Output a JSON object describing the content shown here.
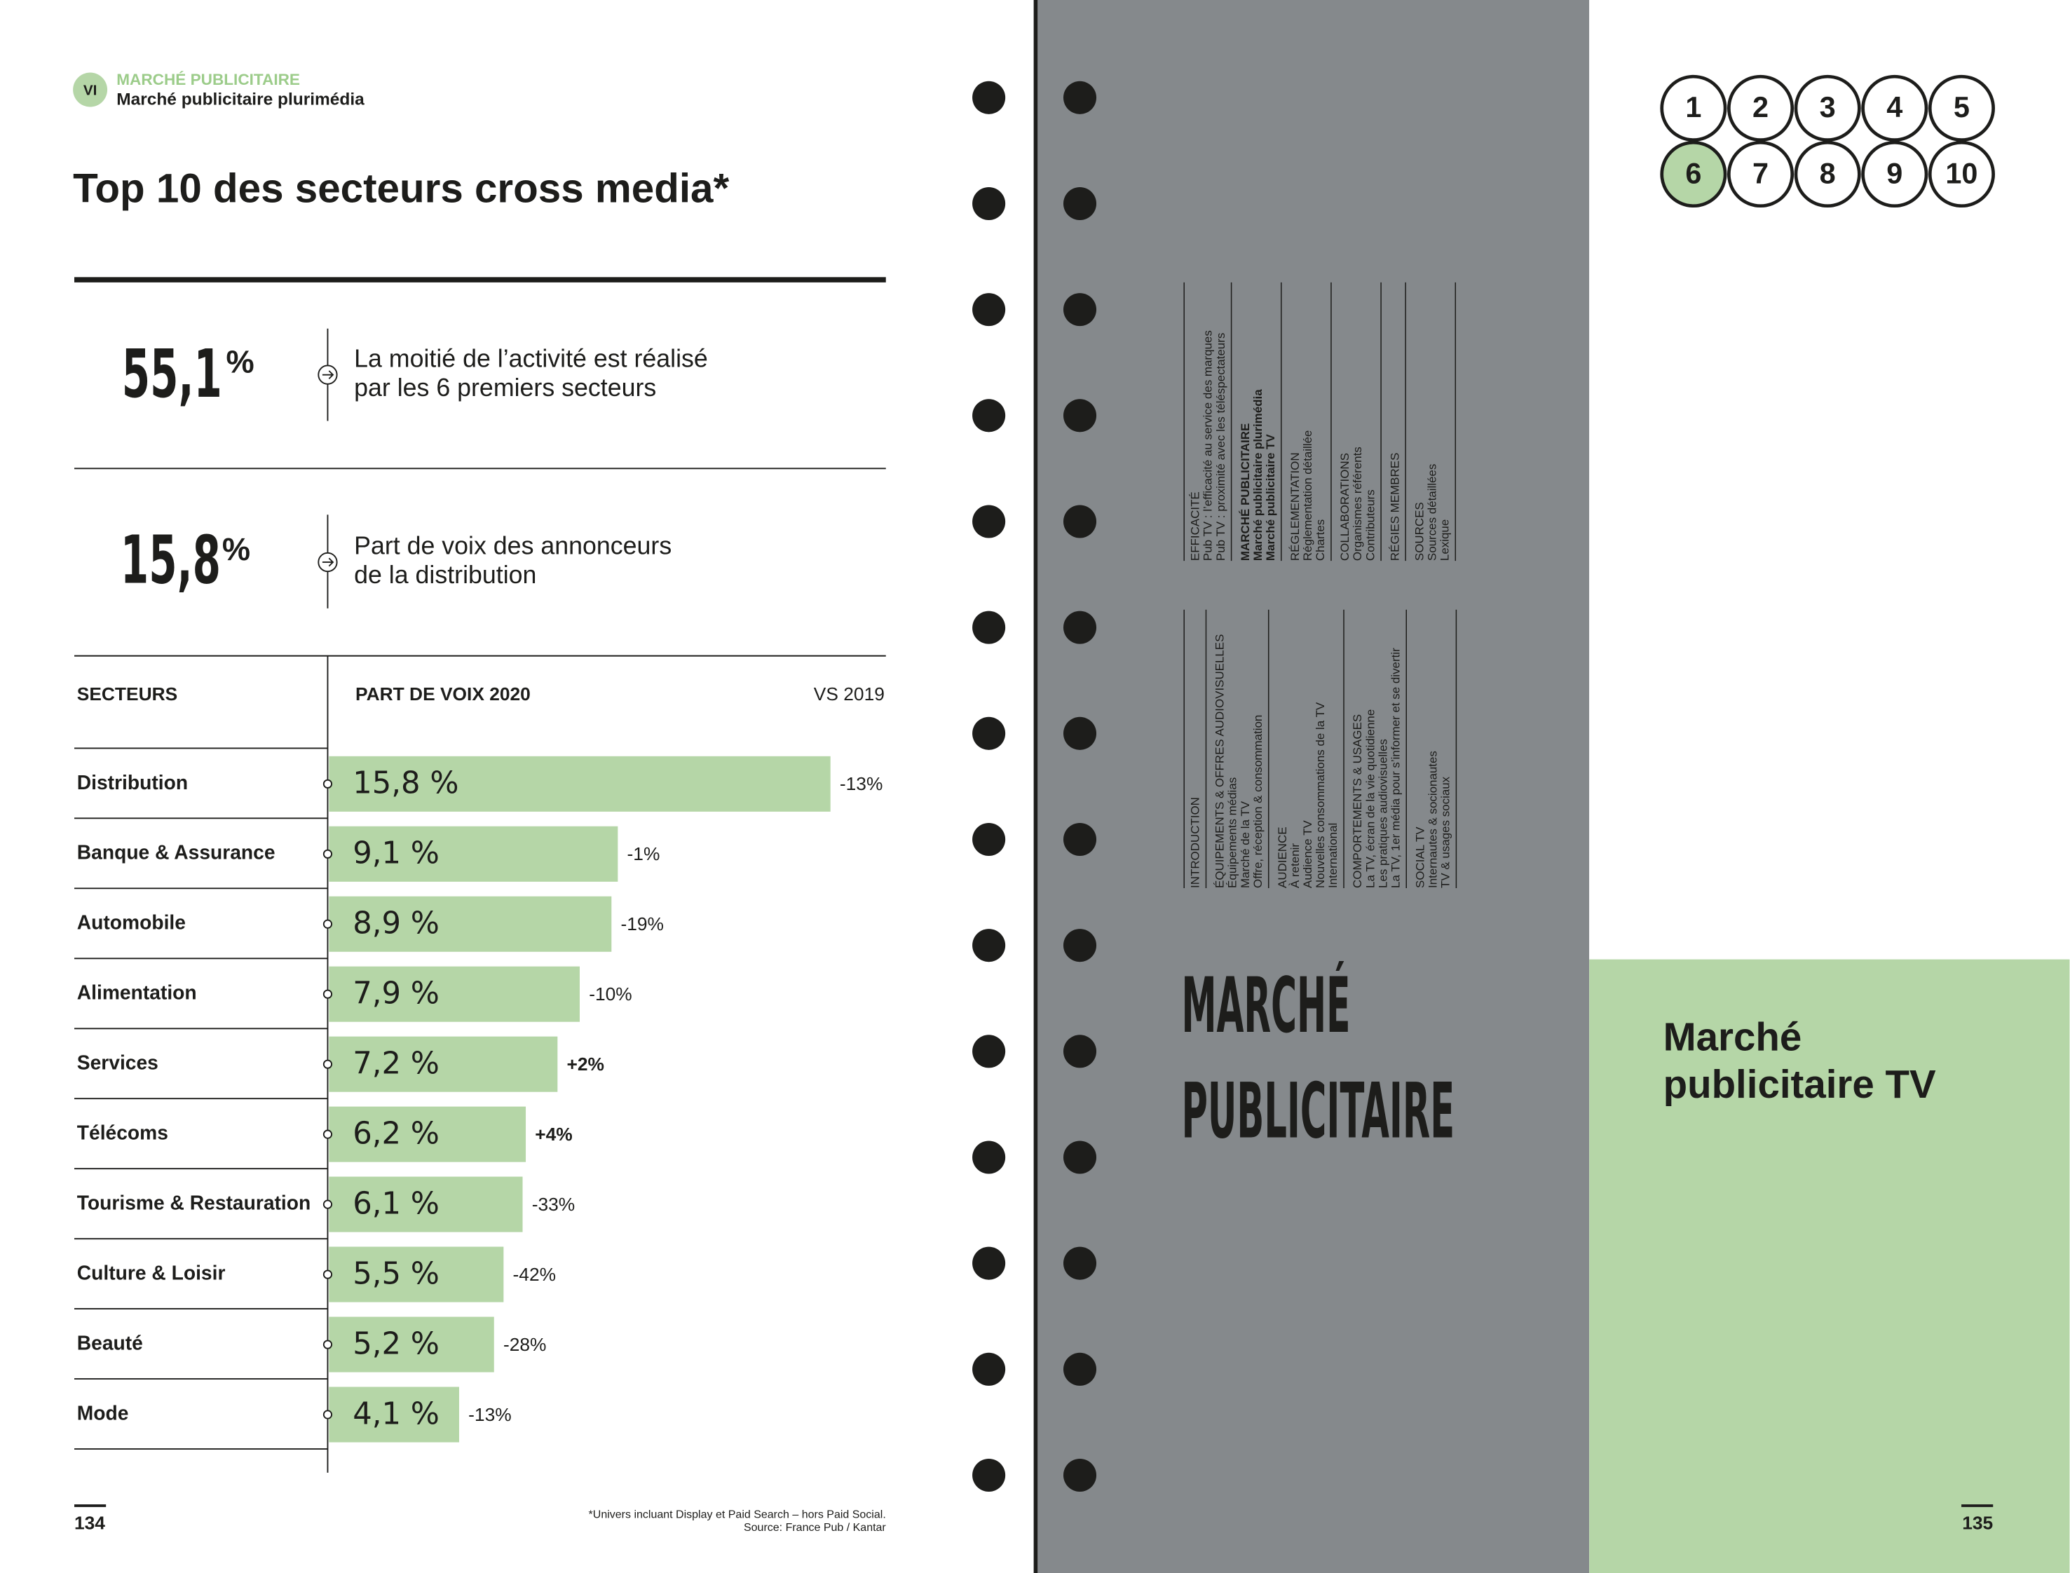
{
  "header": {
    "section_number": "VI",
    "section": "MARCHÉ PUBLICITAIRE",
    "subsection": "Marché publicitaire plurimédia"
  },
  "title": "Top 10 des secteurs cross media*",
  "key_figures": [
    {
      "value": "55,1",
      "unit": "%",
      "text_lines": [
        "La moitié de l’activité est réalisé",
        "par les 6 premiers secteurs"
      ]
    },
    {
      "value": "15,8",
      "unit": "%",
      "text_lines": [
        "Part de voix des annonceurs",
        "de la distribution"
      ]
    }
  ],
  "chart_data": {
    "type": "bar",
    "column_headers": [
      "SECTEURS",
      "PART DE VOIX 2020",
      "VS 2019"
    ],
    "categories": [
      "Distribution",
      "Banque & Assurance",
      "Automobile",
      "Alimentation",
      "Services",
      "Télécoms",
      "Tourisme & Restauration",
      "Culture & Loisir",
      "Beauté",
      "Mode"
    ],
    "values": [
      15.8,
      9.1,
      8.9,
      7.9,
      7.2,
      6.2,
      6.1,
      5.5,
      5.2,
      4.1
    ],
    "value_labels": [
      "15,8 %",
      "9,1 %",
      "8,9 %",
      "7,9 %",
      "7,2 %",
      "6,2 %",
      "6,1 %",
      "5,5 %",
      "5,2 %",
      "4,1 %"
    ],
    "change_labels": [
      "-13%",
      "-1%",
      "-19%",
      "-10%",
      "+2%",
      "+4%",
      "-33%",
      "-42%",
      "-28%",
      "-13%"
    ],
    "color": "#b5d6a7"
  },
  "footnote": [
    "*Univers incluant Display et Paid Search – hors Paid Social.",
    "Source: France Pub / Kantar"
  ],
  "page_left": "134",
  "page_right": "135",
  "toc": {
    "upper": [
      [
        "EFFICACITÉ",
        "Pub TV : l’efficacité au service des marques",
        "Pub TV : proximité avec les téléspectateurs"
      ],
      [
        "MARCHÉ PUBLICITAIRE",
        "Marché publicitaire plurimédia",
        "Marché publicitaire TV"
      ],
      [
        "RÉGLEMENTATION",
        "Réglementation détaillée",
        "Chartes"
      ],
      [
        "COLLABORATIONS",
        "Organismes référents",
        "Contributeurs"
      ],
      [
        "RÉGIES MEMBRES"
      ],
      [
        "SOURCES",
        "Sources détaillées",
        "Lexique"
      ]
    ],
    "lower": [
      [
        "INTRODUCTION"
      ],
      [
        "ÉQUIPEMENTS & OFFRES AUDIOVISUELLES",
        "Équipements médias",
        "Marché de la TV",
        "Offre, réception & consommation"
      ],
      [
        "AUDIENCE",
        "À retenir",
        "Audience TV",
        "Nouvelles consommations de la TV",
        "International"
      ],
      [
        "COMPORTEMENTS & USAGES",
        "La TV, écran de la vie quotidienne",
        "Les pratiques audiovisuelles",
        "La TV, 1er média pour s’informer et se divertir"
      ],
      [
        "SOCIAL TV",
        "Internautes & socionautes",
        "TV & usages sociaux"
      ]
    ]
  },
  "section_title": [
    "MARCHÉ",
    "PUBLICITAIRE"
  ],
  "chapter_numbers": [
    "1",
    "2",
    "3",
    "4",
    "5",
    "6",
    "7",
    "8",
    "9",
    "10"
  ],
  "active_chapter": "6",
  "right_panel_title": [
    "Marché",
    "publicitaire TV"
  ]
}
